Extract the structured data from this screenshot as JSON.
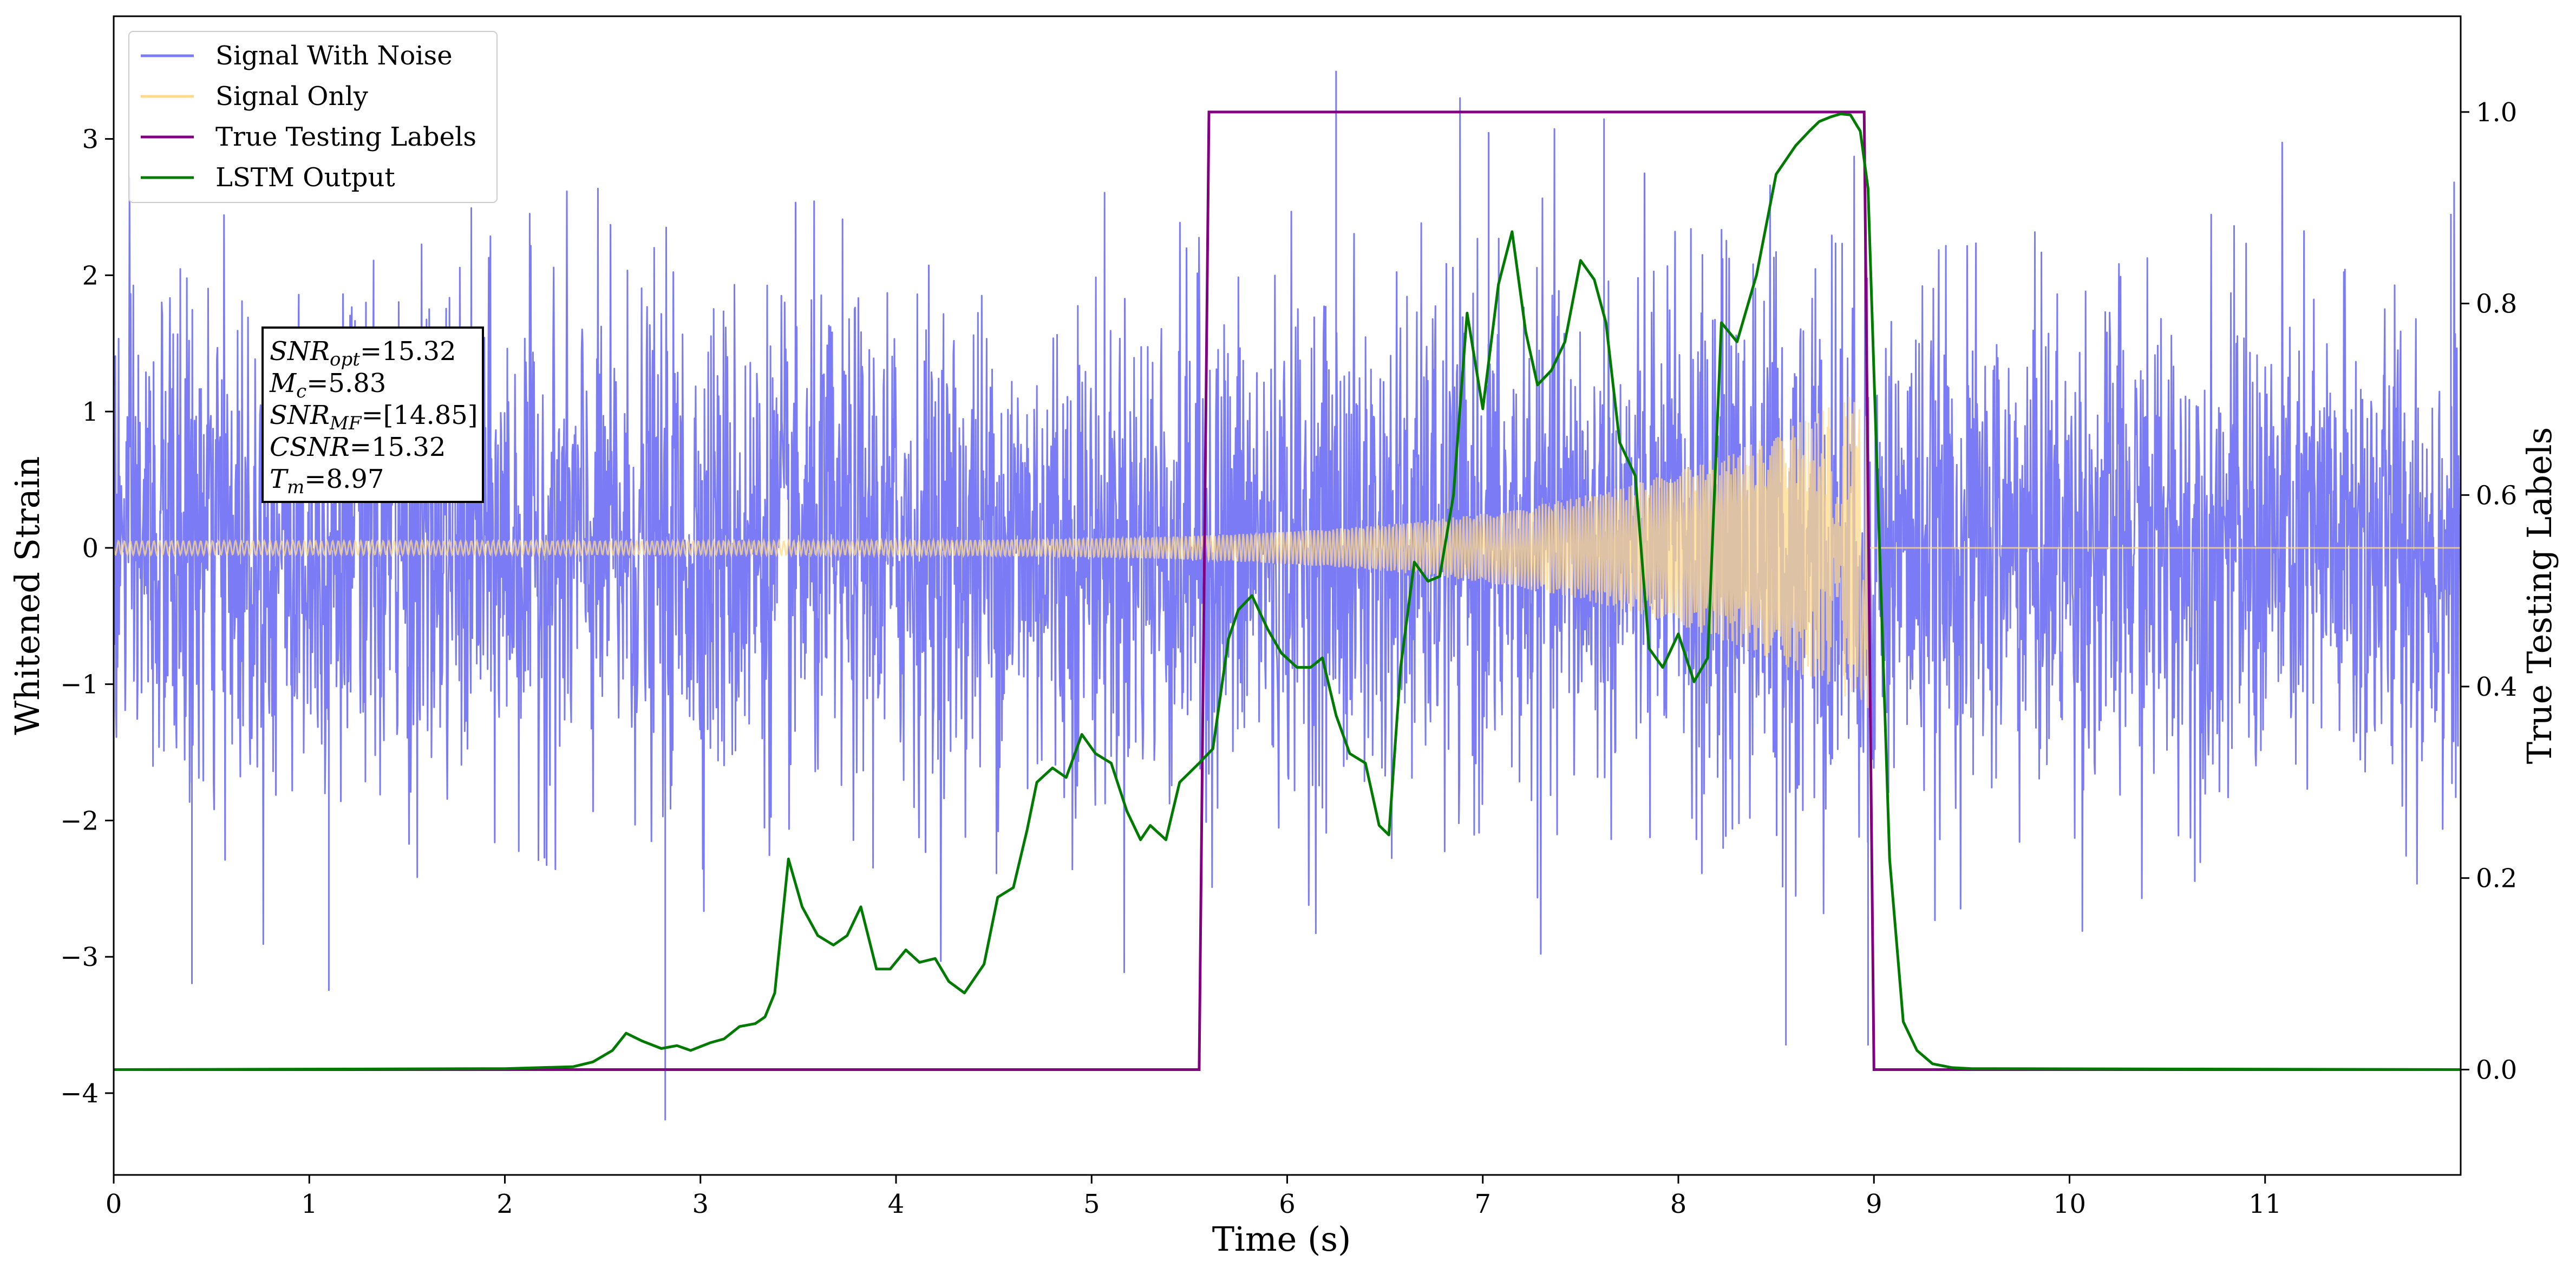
{
  "chart_data": {
    "type": "line",
    "xlabel": "Time (s)",
    "ylabel": "Whitened Strain",
    "ylabel_right": "True Testing Labels",
    "xlim": [
      0,
      12
    ],
    "ylim": [
      -4.6,
      3.9
    ],
    "ylim_right": [
      -0.11,
      1.1
    ],
    "xticks": [
      "0",
      "1",
      "2",
      "3",
      "4",
      "5",
      "6",
      "7",
      "8",
      "9",
      "10",
      "11"
    ],
    "yticks": [
      "3",
      "2",
      "1",
      "0",
      "−1",
      "−2",
      "−3",
      "−4"
    ],
    "yticks_right": [
      "1.0",
      "0.8",
      "0.6",
      "0.4",
      "0.2",
      "0.0"
    ],
    "grid": false,
    "legend": {
      "location": "top-left",
      "entries": [
        {
          "label": "Signal With Noise",
          "color": "#7b7bf5"
        },
        {
          "label": "Signal Only",
          "color": "#ffd98a"
        },
        {
          "label": "True Testing Labels",
          "color": "#800080"
        },
        {
          "label": "LSTM Output",
          "color": "#007a00"
        }
      ]
    },
    "annotation": {
      "lines": [
        {
          "var": "SNR",
          "sub": "opt",
          "value": "=15.32"
        },
        {
          "var": "M",
          "sub": "c",
          "value": "=5.83"
        },
        {
          "var": "SNR",
          "sub": "MF",
          "value": "=[14.85]"
        },
        {
          "var": "CSNR",
          "sub": "",
          "value": "=15.32"
        },
        {
          "var": "T",
          "sub": "m",
          "value": "=8.97"
        }
      ]
    },
    "series": [
      {
        "name": "Signal With Noise",
        "color": "#7b7bf5",
        "axis": "left",
        "noise_sigma": 0.9,
        "spikes": [
          [
            0.4,
            -3.2
          ],
          [
            1.1,
            -3.25
          ],
          [
            2.82,
            -4.2
          ],
          [
            6.25,
            3.5
          ],
          [
            7.03,
            3.05
          ],
          [
            7.62,
            3.15
          ],
          [
            8.55,
            -3.65
          ],
          [
            8.97,
            -3.65
          ],
          [
            11.95,
            2.45
          ]
        ]
      },
      {
        "name": "Signal Only",
        "color": "#ffd98a",
        "axis": "left",
        "chirp": {
          "t_start": 0.0,
          "t_merge": 8.97,
          "amp_start": 0.05,
          "amp_merge": 1.2
        }
      },
      {
        "name": "True Testing Labels",
        "color": "#800080",
        "axis": "right",
        "x": [
          0,
          5.55,
          5.6,
          8.95,
          9.0,
          12
        ],
        "y": [
          0,
          0,
          1,
          1,
          0,
          0
        ]
      },
      {
        "name": "LSTM Output",
        "color": "#007a00",
        "axis": "right",
        "x": [
          0,
          2.0,
          2.35,
          2.45,
          2.55,
          2.62,
          2.7,
          2.8,
          2.88,
          2.95,
          3.05,
          3.12,
          3.2,
          3.28,
          3.33,
          3.38,
          3.45,
          3.52,
          3.6,
          3.68,
          3.75,
          3.82,
          3.9,
          3.97,
          4.05,
          4.12,
          4.2,
          4.27,
          4.35,
          4.45,
          4.52,
          4.6,
          4.67,
          4.72,
          4.8,
          4.87,
          4.95,
          5.02,
          5.1,
          5.18,
          5.25,
          5.3,
          5.38,
          5.45,
          5.55,
          5.62,
          5.7,
          5.75,
          5.82,
          5.9,
          5.97,
          6.05,
          6.12,
          6.18,
          6.25,
          6.32,
          6.4,
          6.47,
          6.52,
          6.58,
          6.65,
          6.72,
          6.78,
          6.85,
          6.92,
          7.0,
          7.08,
          7.15,
          7.22,
          7.28,
          7.35,
          7.42,
          7.5,
          7.57,
          7.63,
          7.7,
          7.78,
          7.85,
          7.92,
          8.0,
          8.08,
          8.15,
          8.22,
          8.3,
          8.4,
          8.5,
          8.6,
          8.67,
          8.72,
          8.78,
          8.83,
          8.88,
          8.93,
          8.97,
          9.02,
          9.08,
          9.15,
          9.22,
          9.3,
          9.4,
          9.5,
          12.0
        ],
        "y": [
          0,
          0.001,
          0.003,
          0.008,
          0.02,
          0.038,
          0.03,
          0.022,
          0.025,
          0.02,
          0.028,
          0.032,
          0.045,
          0.048,
          0.055,
          0.08,
          0.22,
          0.17,
          0.14,
          0.13,
          0.14,
          0.17,
          0.105,
          0.105,
          0.125,
          0.112,
          0.116,
          0.092,
          0.08,
          0.11,
          0.18,
          0.19,
          0.25,
          0.3,
          0.315,
          0.305,
          0.35,
          0.33,
          0.32,
          0.27,
          0.24,
          0.255,
          0.24,
          0.3,
          0.32,
          0.335,
          0.45,
          0.48,
          0.495,
          0.46,
          0.435,
          0.42,
          0.42,
          0.43,
          0.37,
          0.33,
          0.32,
          0.255,
          0.245,
          0.42,
          0.53,
          0.51,
          0.515,
          0.6,
          0.79,
          0.69,
          0.82,
          0.875,
          0.77,
          0.715,
          0.73,
          0.76,
          0.845,
          0.825,
          0.78,
          0.655,
          0.62,
          0.44,
          0.42,
          0.455,
          0.405,
          0.43,
          0.78,
          0.76,
          0.83,
          0.935,
          0.965,
          0.98,
          0.99,
          0.995,
          0.998,
          0.997,
          0.98,
          0.92,
          0.6,
          0.22,
          0.05,
          0.02,
          0.006,
          0.002,
          0.001,
          0
        ]
      }
    ]
  }
}
